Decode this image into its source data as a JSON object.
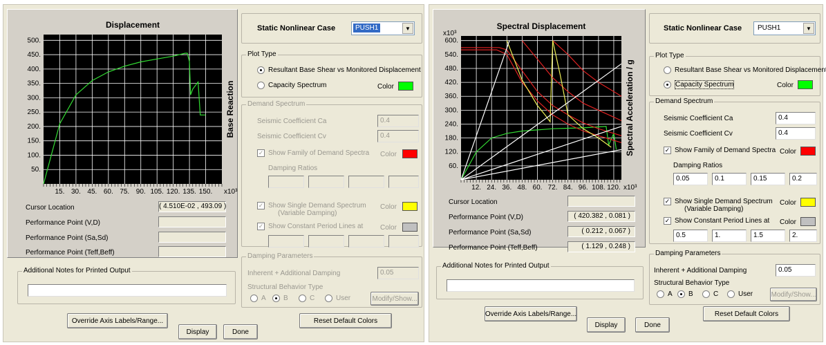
{
  "left": {
    "chart_data": {
      "type": "line",
      "title": "Displacement",
      "xlabel": "",
      "ylabel": "Base Reaction",
      "x_multiplier": "x10³",
      "xlim": [
        0,
        165
      ],
      "ylim": [
        0,
        520
      ],
      "x_ticks": [
        "15.",
        "30.",
        "45.",
        "60.",
        "75.",
        "90.",
        "105.",
        "120.",
        "135.",
        "150."
      ],
      "x_tick_values": [
        15,
        30,
        45,
        60,
        75,
        90,
        105,
        120,
        135,
        150
      ],
      "y_ticks": [
        "50.",
        "100.",
        "150.",
        "200.",
        "250.",
        "300.",
        "350.",
        "400.",
        "450.",
        "500."
      ],
      "y_tick_values": [
        50,
        100,
        150,
        200,
        250,
        300,
        350,
        400,
        450,
        500
      ],
      "grid": true,
      "series": [
        {
          "color": "#33dd33",
          "x": [
            0,
            15,
            30,
            45,
            60,
            75,
            90,
            105,
            120,
            131,
            133,
            135,
            136,
            138,
            143,
            145,
            145,
            150
          ],
          "y": [
            0,
            210,
            310,
            360,
            390,
            410,
            425,
            435,
            445,
            455,
            455,
            425,
            310,
            330,
            355,
            240,
            240,
            240
          ]
        }
      ]
    },
    "static_case_label": "Static Nonlinear Case",
    "static_case_value": "PUSH1",
    "plot_type_title": "Plot Type",
    "radio_resultant": "Resultant Base Shear vs Monitored Displacement",
    "radio_capacity": "Capacity Spectrum",
    "color_label": "Color",
    "capacity_color": "#00ff00",
    "demand_title": "Demand Spectrum",
    "ca_label": "Seismic Coefficient  Ca",
    "ca_value": "0.4",
    "cv_label": "Seismic Coefficient  Cv",
    "cv_value": "0.4",
    "show_family": "Show Family of Demand Spectra",
    "family_color": "#ff0000",
    "damping_ratios_label": "Damping Ratios",
    "show_single_1": "Show Single  Demand Spectrum",
    "show_single_2": "(Variable Damping)",
    "single_color": "#ffff00",
    "show_const": "Show Constant Period Lines at",
    "const_color": "#c0c0c0",
    "damping_params_title": "Damping Parameters",
    "inherent_label": "Inherent + Additional Damping",
    "inherent_value": "0.05",
    "structural_label": "Structural Behavior Type",
    "behavior_a": "A",
    "behavior_b": "B",
    "behavior_c": "C",
    "behavior_user": "User",
    "modify_button": "Modify/Show...",
    "cursor_label": "Cursor Location",
    "cursor_value": "( 4.510E-02 , 493.09 )",
    "pp_vd_label": "Performance Point (V,D)",
    "pp_vd_value": "",
    "pp_sasd_label": "Performance Point (Sa,Sd)",
    "pp_sasd_value": "",
    "pp_teff_label": "Performance Point (Teff,Beff)",
    "pp_teff_value": "",
    "notes_title": "Additional Notes for Printed Output",
    "override_button": "Override Axis Labels/Range...",
    "reset_button": "Reset Default Colors",
    "display_button": "Display",
    "done_button": "Done"
  },
  "right": {
    "chart_data": {
      "type": "line",
      "title": "Spectral Displacement",
      "xlabel": "",
      "ylabel": "Spectral Acceleration / g",
      "x_multiplier": "x10³",
      "y_multiplier": "x10³",
      "xlim": [
        0,
        126
      ],
      "ylim": [
        0,
        620
      ],
      "x_ticks": [
        "12.",
        "24.",
        "36.",
        "48.",
        "60.",
        "72.",
        "84.",
        "96.",
        "108.",
        "120."
      ],
      "x_tick_values": [
        12,
        24,
        36,
        48,
        60,
        72,
        84,
        96,
        108,
        120
      ],
      "y_ticks": [
        "60.",
        "120.",
        "180.",
        "240.",
        "300.",
        "360.",
        "420.",
        "480.",
        "540.",
        "600."
      ],
      "y_tick_values": [
        60,
        120,
        180,
        240,
        300,
        360,
        420,
        480,
        540,
        600
      ],
      "grid": true,
      "series": [
        {
          "kind": "capacity",
          "color": "#33dd33",
          "x": [
            0,
            12,
            24,
            36,
            48,
            60,
            72,
            84,
            96,
            108,
            114,
            116,
            120,
            122
          ],
          "y": [
            0,
            120,
            180,
            200,
            210,
            215,
            220,
            222,
            224,
            228,
            230,
            150,
            200,
            130
          ]
        },
        {
          "kind": "demand-family",
          "color": "#dd2222",
          "x": [
            0,
            12,
            30,
            36,
            48,
            60,
            72,
            84,
            96,
            108,
            120,
            126
          ],
          "y": [
            570,
            570,
            570,
            560,
            470,
            380,
            320,
            280,
            245,
            220,
            200,
            190
          ]
        },
        {
          "kind": "demand-family",
          "color": "#dd2222",
          "x": [
            0,
            12,
            28,
            36,
            48,
            60,
            72,
            84,
            96,
            108,
            120,
            126
          ],
          "y": [
            560,
            560,
            560,
            540,
            420,
            340,
            280,
            240,
            210,
            190,
            170,
            160
          ]
        },
        {
          "kind": "demand-family",
          "color": "#dd2222",
          "x": [
            48,
            60,
            72,
            84,
            96,
            108,
            120,
            126
          ],
          "y": [
            600,
            520,
            440,
            380,
            330,
            300,
            270,
            255
          ]
        },
        {
          "kind": "demand-family",
          "color": "#dd2222",
          "x": [
            72,
            84,
            96,
            108,
            120,
            126
          ],
          "y": [
            600,
            540,
            470,
            420,
            380,
            360
          ]
        },
        {
          "kind": "single-demand",
          "color": "#eeee55",
          "x": [
            36,
            48,
            60,
            66,
            70,
            72,
            78,
            84,
            96,
            108,
            118
          ],
          "y": [
            600,
            430,
            320,
            280,
            250,
            600,
            450,
            280,
            220,
            180,
            140
          ]
        },
        {
          "kind": "period-line",
          "color": "#ffffff",
          "x": [
            0,
            38
          ],
          "y": [
            0,
            600
          ]
        },
        {
          "kind": "period-line",
          "color": "#ffffff",
          "x": [
            0,
            126
          ],
          "y": [
            0,
            500
          ]
        },
        {
          "kind": "period-line",
          "color": "#ffffff",
          "x": [
            0,
            126
          ],
          "y": [
            0,
            230
          ]
        },
        {
          "kind": "period-line",
          "color": "#ffffff",
          "x": [
            0,
            126
          ],
          "y": [
            0,
            130
          ]
        }
      ]
    },
    "static_case_label": "Static Nonlinear Case",
    "static_case_value": "PUSH1",
    "plot_type_title": "Plot Type",
    "radio_resultant": "Resultant Base Shear vs Monitored Displacement",
    "radio_capacity": "Capacity Spectrum",
    "color_label": "Color",
    "capacity_color": "#00ff00",
    "demand_title": "Demand Spectrum",
    "ca_label": "Seismic Coefficient  Ca",
    "ca_value": "0.4",
    "cv_label": "Seismic Coefficient  Cv",
    "cv_value": "0.4",
    "show_family": "Show Family of Demand Spectra",
    "family_color": "#ff0000",
    "damping_ratios_label": "Damping Ratios",
    "damping_ratios": [
      "0.05",
      "0.1",
      "0.15",
      "0.2"
    ],
    "show_single_1": "Show Single  Demand Spectrum",
    "show_single_2": "(Variable Damping)",
    "single_color": "#ffff00",
    "show_const": "Show Constant Period Lines at",
    "const_color": "#c0c0c0",
    "period_lines": [
      "0.5",
      "1.",
      "1.5",
      "2."
    ],
    "damping_params_title": "Damping Parameters",
    "inherent_label": "Inherent + Additional Damping",
    "inherent_value": "0.05",
    "structural_label": "Structural Behavior Type",
    "behavior_a": "A",
    "behavior_b": "B",
    "behavior_c": "C",
    "behavior_user": "User",
    "modify_button": "Modify/Show...",
    "cursor_label": "Cursor Location",
    "cursor_value": "",
    "pp_vd_label": "Performance Point (V,D)",
    "pp_vd_value": "( 420.382 , 0.081 )",
    "pp_sasd_label": "Performance Point (Sa,Sd)",
    "pp_sasd_value": "( 0.212 , 0.067 )",
    "pp_teff_label": "Performance Point (Teff,Beff)",
    "pp_teff_value": "( 1.129 , 0.248 )",
    "notes_title": "Additional Notes for Printed Output",
    "override_button": "Override Axis Labels/Range...",
    "reset_button": "Reset Default Colors",
    "display_button": "Display",
    "done_button": "Done"
  }
}
